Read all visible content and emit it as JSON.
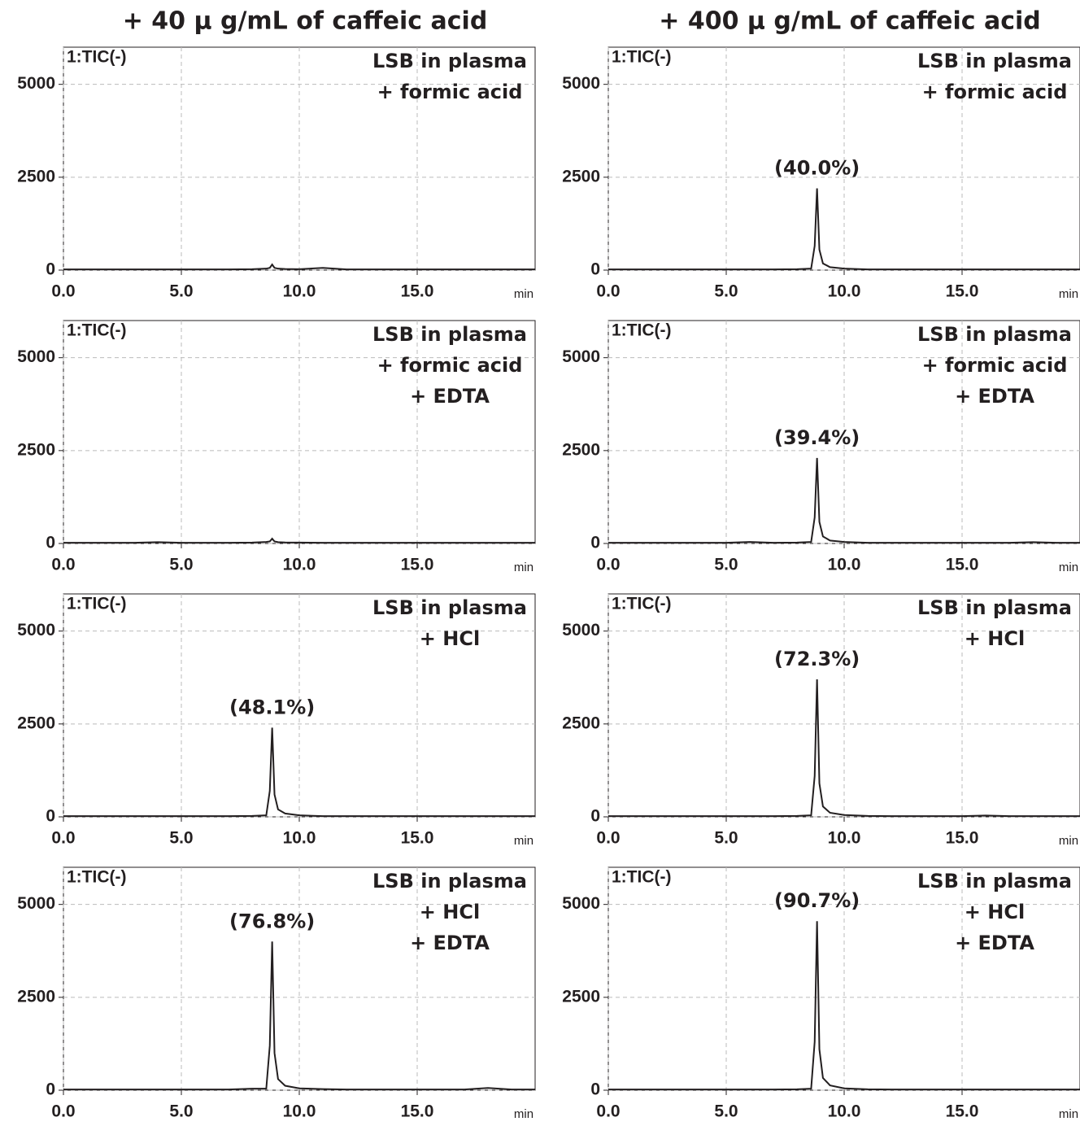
{
  "column_titles": [
    "+ 40 μ g/mL of caffeic acid",
    "+ 400 μ g/mL of caffeic acid"
  ],
  "chart_data": [
    {
      "type": "line",
      "trace_label": "1:TIC(-)",
      "sample_labels": [
        "LSB in plasma",
        "+ formic acid"
      ],
      "xlabel": "min",
      "x": [
        0,
        1,
        2,
        3,
        4,
        5,
        6,
        7,
        8,
        8.6,
        8.75,
        8.85,
        8.95,
        9.1,
        9.4,
        10,
        11,
        12,
        13,
        14,
        15,
        16,
        17,
        18,
        19,
        20
      ],
      "values": [
        20,
        20,
        20,
        20,
        20,
        20,
        20,
        20,
        25,
        40,
        60,
        150,
        60,
        40,
        30,
        25,
        60,
        20,
        20,
        20,
        20,
        20,
        20,
        20,
        20,
        20
      ],
      "color": "#231f20",
      "xlim": [
        0,
        20
      ],
      "ylim": [
        0,
        6000
      ],
      "xticks": [
        {
          "value": 0,
          "label": "0.0"
        },
        {
          "value": 5,
          "label": "5.0"
        },
        {
          "value": 10,
          "label": "10.0"
        },
        {
          "value": 15,
          "label": "15.0"
        }
      ],
      "yticks": [
        0,
        2500,
        5000
      ],
      "grid": true
    },
    {
      "type": "line",
      "trace_label": "1:TIC(-)",
      "sample_labels": [
        "LSB in plasma",
        "+ formic acid"
      ],
      "peak_label": "(40.0%)",
      "xlabel": "min",
      "x": [
        0,
        1,
        2,
        3,
        4,
        5,
        6,
        7,
        8,
        8.6,
        8.75,
        8.85,
        8.95,
        9.1,
        9.4,
        10,
        11,
        12,
        13,
        14,
        15,
        16,
        17,
        18,
        19,
        20
      ],
      "values": [
        20,
        20,
        20,
        20,
        20,
        20,
        20,
        20,
        25,
        40,
        650,
        2200,
        550,
        180,
        80,
        40,
        20,
        20,
        20,
        20,
        20,
        20,
        20,
        20,
        20,
        20
      ],
      "color": "#231f20",
      "xlim": [
        0,
        20
      ],
      "ylim": [
        0,
        6000
      ],
      "xticks": [
        {
          "value": 0,
          "label": "0.0"
        },
        {
          "value": 5,
          "label": "5.0"
        },
        {
          "value": 10,
          "label": "10.0"
        },
        {
          "value": 15,
          "label": "15.0"
        }
      ],
      "yticks": [
        0,
        2500,
        5000
      ],
      "grid": true
    },
    {
      "type": "line",
      "trace_label": "1:TIC(-)",
      "sample_labels": [
        "LSB in plasma",
        "+ formic acid",
        "+ EDTA"
      ],
      "xlabel": "min",
      "x": [
        0,
        1,
        2,
        3,
        4,
        5,
        6,
        7,
        8,
        8.6,
        8.75,
        8.85,
        8.95,
        9.1,
        9.4,
        10,
        11,
        12,
        13,
        14,
        15,
        16,
        17,
        18,
        19,
        20
      ],
      "values": [
        20,
        20,
        20,
        20,
        35,
        20,
        20,
        20,
        25,
        40,
        55,
        130,
        55,
        35,
        28,
        25,
        20,
        20,
        20,
        20,
        20,
        20,
        20,
        20,
        20,
        20
      ],
      "color": "#231f20",
      "xlim": [
        0,
        20
      ],
      "ylim": [
        0,
        6000
      ],
      "xticks": [
        {
          "value": 0,
          "label": "0.0"
        },
        {
          "value": 5,
          "label": "5.0"
        },
        {
          "value": 10,
          "label": "10.0"
        },
        {
          "value": 15,
          "label": "15.0"
        }
      ],
      "yticks": [
        0,
        2500,
        5000
      ],
      "grid": true
    },
    {
      "type": "line",
      "trace_label": "1:TIC(-)",
      "sample_labels": [
        "LSB in plasma",
        "+ formic acid",
        "+ EDTA"
      ],
      "peak_label": "(39.4%)",
      "xlabel": "min",
      "x": [
        0,
        1,
        2,
        3,
        4,
        5,
        6,
        7,
        8,
        8.6,
        8.75,
        8.85,
        8.95,
        9.1,
        9.4,
        10,
        11,
        12,
        13,
        14,
        15,
        16,
        17,
        18,
        19,
        20
      ],
      "values": [
        20,
        20,
        20,
        20,
        20,
        20,
        40,
        20,
        25,
        40,
        700,
        2300,
        580,
        190,
        80,
        40,
        20,
        20,
        20,
        20,
        20,
        20,
        20,
        35,
        20,
        20
      ],
      "color": "#231f20",
      "xlim": [
        0,
        20
      ],
      "ylim": [
        0,
        6000
      ],
      "xticks": [
        {
          "value": 0,
          "label": "0.0"
        },
        {
          "value": 5,
          "label": "5.0"
        },
        {
          "value": 10,
          "label": "10.0"
        },
        {
          "value": 15,
          "label": "15.0"
        }
      ],
      "yticks": [
        0,
        2500,
        5000
      ],
      "grid": true
    },
    {
      "type": "line",
      "trace_label": "1:TIC(-)",
      "sample_labels": [
        "LSB in plasma",
        "+ HCl"
      ],
      "peak_label": "(48.1%)",
      "xlabel": "min",
      "x": [
        0,
        1,
        2,
        3,
        4,
        5,
        6,
        7,
        8,
        8.6,
        8.75,
        8.85,
        8.95,
        9.1,
        9.4,
        10,
        11,
        12,
        13,
        14,
        15,
        16,
        17,
        18,
        19,
        20
      ],
      "values": [
        20,
        20,
        20,
        20,
        20,
        20,
        20,
        20,
        25,
        40,
        700,
        2400,
        600,
        200,
        90,
        40,
        20,
        20,
        20,
        20,
        20,
        20,
        20,
        20,
        20,
        20
      ],
      "color": "#231f20",
      "xlim": [
        0,
        20
      ],
      "ylim": [
        0,
        6000
      ],
      "xticks": [
        {
          "value": 0,
          "label": "0.0"
        },
        {
          "value": 5,
          "label": "5.0"
        },
        {
          "value": 10,
          "label": "10.0"
        },
        {
          "value": 15,
          "label": "15.0"
        }
      ],
      "yticks": [
        0,
        2500,
        5000
      ],
      "grid": true
    },
    {
      "type": "line",
      "trace_label": "1:TIC(-)",
      "sample_labels": [
        "LSB in plasma",
        "+ HCl"
      ],
      "peak_label": "(72.3%)",
      "xlabel": "min",
      "x": [
        0,
        1,
        2,
        3,
        4,
        5,
        6,
        7,
        8,
        8.6,
        8.75,
        8.85,
        8.95,
        9.1,
        9.4,
        10,
        11,
        12,
        13,
        14,
        15,
        16,
        17,
        18,
        19,
        20
      ],
      "values": [
        20,
        20,
        20,
        20,
        20,
        20,
        20,
        20,
        25,
        40,
        1100,
        3700,
        900,
        280,
        110,
        50,
        25,
        20,
        20,
        20,
        20,
        35,
        20,
        20,
        20,
        20
      ],
      "color": "#231f20",
      "xlim": [
        0,
        20
      ],
      "ylim": [
        0,
        6000
      ],
      "xticks": [
        {
          "value": 0,
          "label": "0.0"
        },
        {
          "value": 5,
          "label": "5.0"
        },
        {
          "value": 10,
          "label": "10.0"
        },
        {
          "value": 15,
          "label": "15.0"
        }
      ],
      "yticks": [
        0,
        2500,
        5000
      ],
      "grid": true
    },
    {
      "type": "line",
      "trace_label": "1:TIC(-)",
      "sample_labels": [
        "LSB in plasma",
        "+ HCl",
        "+ EDTA"
      ],
      "peak_label": "(76.8%)",
      "xlabel": "min",
      "x": [
        0,
        1,
        2,
        3,
        4,
        5,
        6,
        7,
        8,
        8.6,
        8.75,
        8.85,
        8.95,
        9.1,
        9.4,
        10,
        11,
        12,
        13,
        14,
        15,
        16,
        17,
        18,
        19,
        20
      ],
      "values": [
        20,
        20,
        20,
        20,
        20,
        20,
        20,
        20,
        40,
        40,
        1200,
        4000,
        1000,
        300,
        120,
        50,
        30,
        20,
        20,
        20,
        20,
        20,
        20,
        60,
        20,
        20
      ],
      "color": "#231f20",
      "xlim": [
        0,
        20
      ],
      "ylim": [
        0,
        6000
      ],
      "xticks": [
        {
          "value": 0,
          "label": "0.0"
        },
        {
          "value": 5,
          "label": "5.0"
        },
        {
          "value": 10,
          "label": "10.0"
        },
        {
          "value": 15,
          "label": "15.0"
        }
      ],
      "yticks": [
        0,
        2500,
        5000
      ],
      "grid": true
    },
    {
      "type": "line",
      "trace_label": "1:TIC(-)",
      "sample_labels": [
        "LSB in plasma",
        "+ HCl",
        "+ EDTA"
      ],
      "peak_label": "(90.7%)",
      "xlabel": "min",
      "x": [
        0,
        1,
        2,
        3,
        4,
        5,
        6,
        7,
        8,
        8.6,
        8.75,
        8.85,
        8.95,
        9.1,
        9.4,
        10,
        11,
        12,
        13,
        14,
        15,
        16,
        17,
        18,
        19,
        20
      ],
      "values": [
        20,
        20,
        20,
        20,
        20,
        20,
        20,
        20,
        25,
        40,
        1300,
        4550,
        1100,
        330,
        130,
        50,
        25,
        20,
        20,
        20,
        20,
        20,
        20,
        20,
        20,
        20
      ],
      "color": "#231f20",
      "xlim": [
        0,
        20
      ],
      "ylim": [
        0,
        6000
      ],
      "xticks": [
        {
          "value": 0,
          "label": "0.0"
        },
        {
          "value": 5,
          "label": "5.0"
        },
        {
          "value": 10,
          "label": "10.0"
        },
        {
          "value": 15,
          "label": "15.0"
        }
      ],
      "yticks": [
        0,
        2500,
        5000
      ],
      "grid": true
    }
  ]
}
